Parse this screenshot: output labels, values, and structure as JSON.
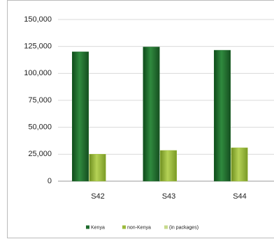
{
  "chart_data": {
    "type": "bar",
    "categories": [
      "S42",
      "S43",
      "S44"
    ],
    "series": [
      {
        "name": "Kenya",
        "color": "#1f6b2c",
        "values": [
          120000,
          124500,
          121500
        ]
      },
      {
        "name": "non-Kenya",
        "color": "#9bba3a",
        "values": [
          25000,
          28500,
          31000
        ]
      },
      {
        "name": "(in packages)",
        "color": "#c6da8c",
        "values": [
          null,
          null,
          null
        ]
      }
    ],
    "ylim": [
      0,
      150000
    ],
    "yticks": [
      0,
      {
        "value": 25000,
        "label": "25,000"
      },
      {
        "value": 50000,
        "label": "50,000"
      },
      {
        "value": 75000,
        "label": "75,000"
      },
      {
        "value": 100000,
        "label": "100,000"
      },
      {
        "value": 125000,
        "label": "125,000"
      },
      {
        "value": 150000,
        "label": "150,000"
      }
    ],
    "grid": true,
    "legend": "bottom"
  }
}
